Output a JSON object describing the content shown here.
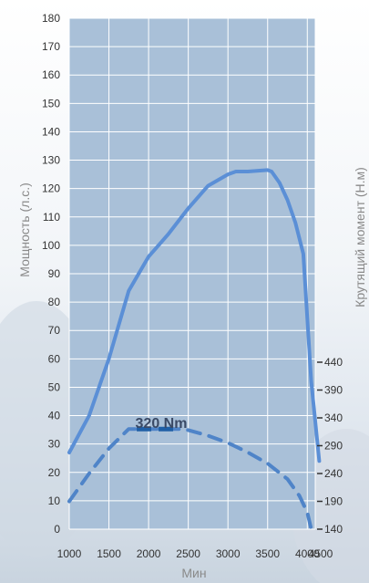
{
  "chart_data": {
    "type": "line",
    "title": "",
    "xlabel": "Мин",
    "ylabel": "Мощность (л.с.)",
    "y2label": "Крутящий момент (Н.м)",
    "xlim": [
      1000,
      4500
    ],
    "ylim": [
      0,
      180
    ],
    "x_ticks": [
      1000,
      1500,
      2000,
      2500,
      3000,
      3500,
      4000,
      4500
    ],
    "y_ticks": [
      0,
      10,
      20,
      30,
      40,
      50,
      60,
      70,
      80,
      90,
      100,
      110,
      120,
      130,
      140,
      150,
      160,
      170,
      180
    ],
    "y2_ticks": [
      140,
      190,
      240,
      290,
      340,
      390,
      440
    ],
    "y2_range": [
      140,
      440
    ],
    "grid": true,
    "colors": {
      "plot_background": "#a9c0d8",
      "grid": "#ffffff",
      "power_line": "#5b8fd6",
      "torque_line": "#4f84c8",
      "torque_peak": "#1f5fa6",
      "annotation": "#3a4a66"
    },
    "series": [
      {
        "axis": "left",
        "style": "solid",
        "x": [
          1000,
          1250,
          1500,
          1750,
          2000,
          2250,
          2500,
          2750,
          3000,
          3100,
          3250,
          3500,
          3550,
          3650,
          3750,
          3850,
          3950,
          4050,
          4150
        ],
        "values": [
          27,
          40,
          60,
          84,
          96,
          104,
          113,
          121,
          125,
          126,
          126,
          126.5,
          126,
          122,
          116,
          108,
          97,
          52,
          24
        ]
      },
      {
        "axis": "right",
        "style": "dashed",
        "x": [
          1000,
          1250,
          1500,
          1750,
          1850,
          2000,
          2250,
          2400,
          2500,
          2750,
          3000,
          3250,
          3500,
          3750,
          3900,
          4000,
          4050
        ],
        "values": [
          190,
          240,
          285,
          320,
          320,
          320,
          320,
          320,
          318,
          308,
          295,
          278,
          258,
          230,
          200,
          170,
          140
        ]
      }
    ],
    "annotations": [
      {
        "text": "320 Nm",
        "x": 2100,
        "y": 338,
        "axis": "right"
      }
    ]
  }
}
